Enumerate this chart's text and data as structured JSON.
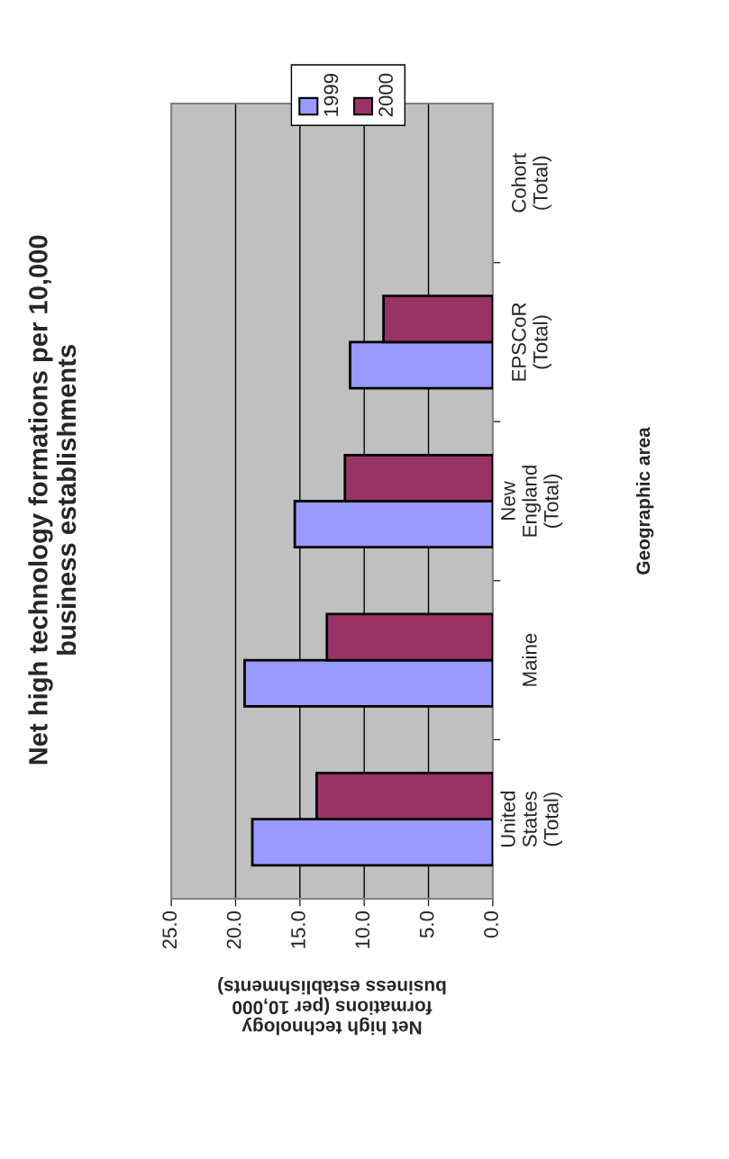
{
  "chart_data": {
    "type": "bar",
    "orientation": "horizontal",
    "title": "Net high technology formations per 10,000\nbusiness establishments",
    "xlabel": "Net high technology\nformations (per 10,000\nbusiness establishments)",
    "ylabel": "Geographic area",
    "categories": [
      "Cohort\n(Total)",
      "EPSCoR\n(Total)",
      "New\nEngland\n(Total)",
      "Maine",
      "United\nStates\n(Total)"
    ],
    "series": [
      {
        "name": "1999",
        "color": "#9999ff",
        "values": [
          null,
          11.1,
          15.4,
          19.3,
          18.7
        ]
      },
      {
        "name": "2000",
        "color": "#993366",
        "values": [
          null,
          8.5,
          11.5,
          12.9,
          13.7
        ]
      }
    ],
    "xlim": [
      25,
      0
    ],
    "xticks": [
      {
        "value": 25,
        "label": "25.0"
      },
      {
        "value": 20,
        "label": "20.0"
      },
      {
        "value": 15,
        "label": "15.0"
      },
      {
        "value": 10,
        "label": "10.0"
      },
      {
        "value": 5,
        "label": "5.0"
      },
      {
        "value": 0,
        "label": "0.0"
      }
    ],
    "grid": "x",
    "legend": "top"
  }
}
